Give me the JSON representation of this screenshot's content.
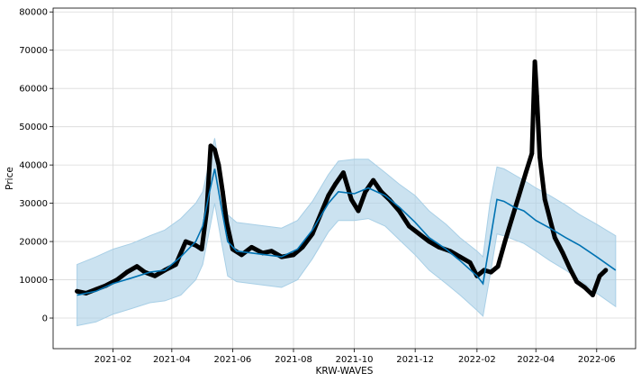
{
  "chart_data": {
    "type": "line",
    "title": "",
    "xlabel": "KRW-WAVES",
    "ylabel": "Price",
    "grid": true,
    "legend": "none",
    "x_range": [
      "2020-12-03",
      "2022-07-10"
    ],
    "ylim": [
      -8000,
      81000
    ],
    "x_ticks": [
      "2021-02",
      "2021-04",
      "2021-06",
      "2021-08",
      "2021-10",
      "2021-12",
      "2022-02",
      "2022-04",
      "2022-06"
    ],
    "y_ticks": [
      0,
      10000,
      20000,
      30000,
      40000,
      50000,
      60000,
      70000,
      80000
    ],
    "colors": {
      "forecast": "#0072b2",
      "interval": "#a8cfe6",
      "observed": "#000000",
      "grid": "#d9d9d9"
    },
    "series": [
      {
        "role": "forecast",
        "x": [
          "2020-12-27",
          "2021-01-15",
          "2021-02-01",
          "2021-02-20",
          "2021-03-10",
          "2021-03-25",
          "2021-04-10",
          "2021-04-25",
          "2021-05-02",
          "2021-05-08",
          "2021-05-14",
          "2021-05-20",
          "2021-05-27",
          "2021-06-05",
          "2021-06-20",
          "2021-07-05",
          "2021-07-20",
          "2021-08-05",
          "2021-08-20",
          "2021-09-05",
          "2021-09-15",
          "2021-10-01",
          "2021-10-15",
          "2021-11-01",
          "2021-11-15",
          "2021-12-01",
          "2021-12-15",
          "2022-01-01",
          "2022-01-15",
          "2022-02-01",
          "2022-02-07",
          "2022-02-14",
          "2022-02-21",
          "2022-02-28",
          "2022-03-10",
          "2022-03-20",
          "2022-04-01",
          "2022-04-15",
          "2022-05-01",
          "2022-05-15",
          "2022-06-01",
          "2022-06-20"
        ],
        "y": [
          6000,
          7000,
          9000,
          10500,
          12000,
          12500,
          16000,
          20000,
          24000,
          32000,
          39000,
          30000,
          20000,
          17500,
          17000,
          16500,
          16000,
          18000,
          23000,
          30000,
          33000,
          32500,
          34000,
          32000,
          29000,
          25000,
          21000,
          18000,
          15000,
          11000,
          9000,
          20000,
          31000,
          30500,
          29000,
          28000,
          25500,
          23500,
          21000,
          19000,
          16000,
          12500
        ]
      },
      {
        "role": "interval",
        "x": [
          "2020-12-27",
          "2021-01-15",
          "2021-02-01",
          "2021-02-20",
          "2021-03-10",
          "2021-03-25",
          "2021-04-10",
          "2021-04-25",
          "2021-05-02",
          "2021-05-08",
          "2021-05-14",
          "2021-05-20",
          "2021-05-27",
          "2021-06-05",
          "2021-06-20",
          "2021-07-05",
          "2021-07-20",
          "2021-08-05",
          "2021-08-20",
          "2021-09-05",
          "2021-09-15",
          "2021-10-01",
          "2021-10-15",
          "2021-11-01",
          "2021-11-15",
          "2021-12-01",
          "2021-12-15",
          "2022-01-01",
          "2022-01-15",
          "2022-02-01",
          "2022-02-07",
          "2022-02-14",
          "2022-02-21",
          "2022-02-28",
          "2022-03-10",
          "2022-03-20",
          "2022-04-01",
          "2022-04-15",
          "2022-05-01",
          "2022-05-15",
          "2022-06-01",
          "2022-06-20"
        ],
        "upper": [
          14000,
          16000,
          18000,
          19500,
          21500,
          23000,
          26000,
          30000,
          33000,
          40000,
          47000,
          37000,
          27000,
          25000,
          24500,
          24000,
          23500,
          25500,
          30500,
          37500,
          41000,
          41500,
          41500,
          38000,
          35000,
          32000,
          28000,
          24500,
          21000,
          17500,
          16000,
          30000,
          39500,
          39000,
          37500,
          36000,
          34000,
          32000,
          29500,
          27000,
          24500,
          21500
        ],
        "lower": [
          -2000,
          -1000,
          1000,
          2500,
          4000,
          4500,
          6000,
          10000,
          14000,
          22000,
          30000,
          21000,
          11000,
          9500,
          9000,
          8500,
          8000,
          10000,
          15500,
          22500,
          25500,
          25500,
          26000,
          24000,
          20500,
          16500,
          12500,
          9000,
          6000,
          2000,
          500,
          11000,
          22000,
          21500,
          20500,
          19500,
          17500,
          15000,
          12500,
          10000,
          6500,
          3000
        ]
      },
      {
        "role": "observed",
        "x": [
          "2020-12-27",
          "2021-01-05",
          "2021-01-15",
          "2021-01-25",
          "2021-02-05",
          "2021-02-15",
          "2021-02-25",
          "2021-03-05",
          "2021-03-15",
          "2021-03-25",
          "2021-04-05",
          "2021-04-15",
          "2021-04-25",
          "2021-05-01",
          "2021-05-06",
          "2021-05-10",
          "2021-05-14",
          "2021-05-18",
          "2021-05-22",
          "2021-05-26",
          "2021-06-01",
          "2021-06-10",
          "2021-06-20",
          "2021-07-01",
          "2021-07-10",
          "2021-07-20",
          "2021-08-01",
          "2021-08-10",
          "2021-08-20",
          "2021-08-28",
          "2021-09-05",
          "2021-09-12",
          "2021-09-20",
          "2021-09-28",
          "2021-10-05",
          "2021-10-12",
          "2021-10-20",
          "2021-10-28",
          "2021-11-05",
          "2021-11-15",
          "2021-11-25",
          "2021-12-05",
          "2021-12-15",
          "2021-12-25",
          "2022-01-05",
          "2022-01-15",
          "2022-01-25",
          "2022-02-01",
          "2022-02-08",
          "2022-02-15",
          "2022-02-22",
          "2022-03-01",
          "2022-03-08",
          "2022-03-15",
          "2022-03-22",
          "2022-03-28",
          "2022-03-31",
          "2022-04-02",
          "2022-04-05",
          "2022-04-10",
          "2022-04-15",
          "2022-04-20",
          "2022-04-28",
          "2022-05-05",
          "2022-05-12",
          "2022-05-20",
          "2022-05-28",
          "2022-06-04",
          "2022-06-10"
        ],
        "y": [
          7000,
          6500,
          7500,
          8500,
          10000,
          12000,
          13500,
          12000,
          11000,
          12500,
          14000,
          20000,
          19000,
          18000,
          28000,
          45000,
          44000,
          40000,
          33000,
          25000,
          18000,
          16500,
          18500,
          17000,
          17500,
          16000,
          16500,
          18500,
          22000,
          27000,
          32000,
          35000,
          38000,
          31000,
          28000,
          33000,
          36000,
          33000,
          31000,
          28000,
          24000,
          22000,
          20000,
          18500,
          17500,
          16000,
          14500,
          11000,
          12500,
          12000,
          13500,
          20000,
          26000,
          32000,
          38000,
          43000,
          67000,
          58000,
          42000,
          31000,
          26000,
          21000,
          17000,
          13000,
          9500,
          8000,
          6000,
          11000,
          12500
        ]
      }
    ]
  }
}
